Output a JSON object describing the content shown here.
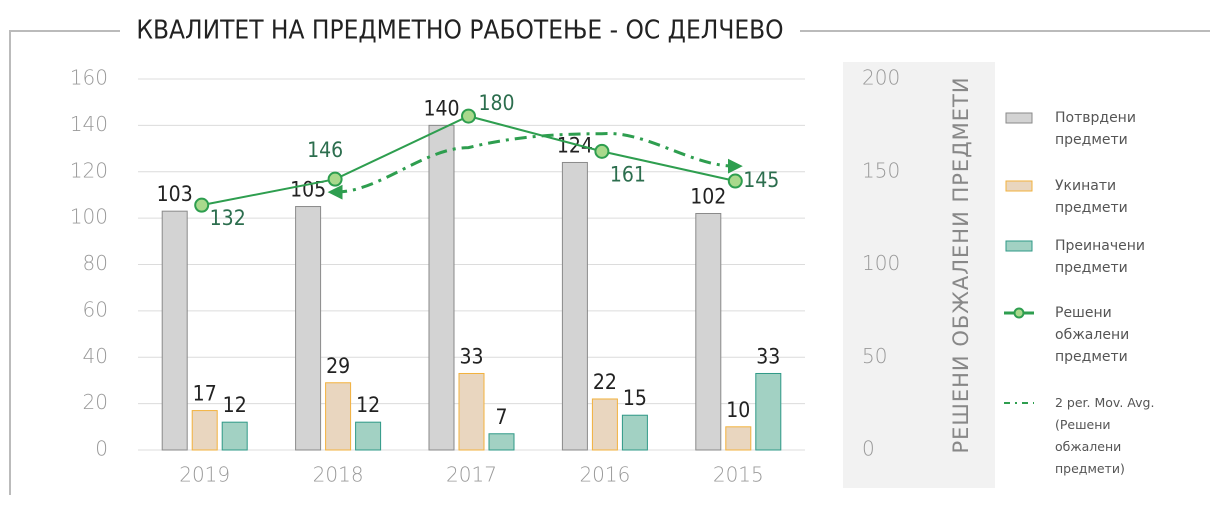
{
  "chart_data": {
    "type": "bar",
    "title": "КВАЛИТЕТ НА ПРЕДМЕТНО РАБОТЕЊЕ - ОС  ДЕЛЧЕВО",
    "y2label": "РЕШЕНИ ОБЖАЛЕНИ ПРЕДМЕТИ",
    "categories": [
      "2019",
      "2018",
      "2017",
      "2016",
      "2015"
    ],
    "series": [
      {
        "name": "Потврдени предмети",
        "type": "bar",
        "color": "#d3d3d3",
        "stroke": "#8a8a8a",
        "values": [
          103,
          105,
          140,
          124,
          102
        ]
      },
      {
        "name": "Укинати предмети",
        "type": "bar",
        "color": "#e9d6bf",
        "stroke": "#f2b13c",
        "values": [
          17,
          29,
          33,
          22,
          10
        ]
      },
      {
        "name": "Преиначени предмети",
        "type": "bar",
        "color": "#a2d1c3",
        "stroke": "#2f9987",
        "values": [
          12,
          12,
          7,
          15,
          33
        ]
      },
      {
        "name": "Решени обжалени предмети",
        "type": "line",
        "axis": "y2",
        "color": "#2e9e4f",
        "marker_color": "#a9d98c",
        "values": [
          132,
          146,
          180,
          161,
          145
        ]
      }
    ],
    "trendline": {
      "name": "2 per. Mov. Avg. (Решени обжалени предмети)",
      "series": 3,
      "period": 2,
      "color": "#2e9e4f"
    },
    "ylim": [
      0,
      160
    ],
    "yticks": [
      0,
      20,
      40,
      60,
      80,
      100,
      120,
      140,
      160
    ],
    "y2lim": [
      0,
      200
    ],
    "y2ticks": [
      0,
      50,
      100,
      150,
      200
    ],
    "grid": true
  }
}
